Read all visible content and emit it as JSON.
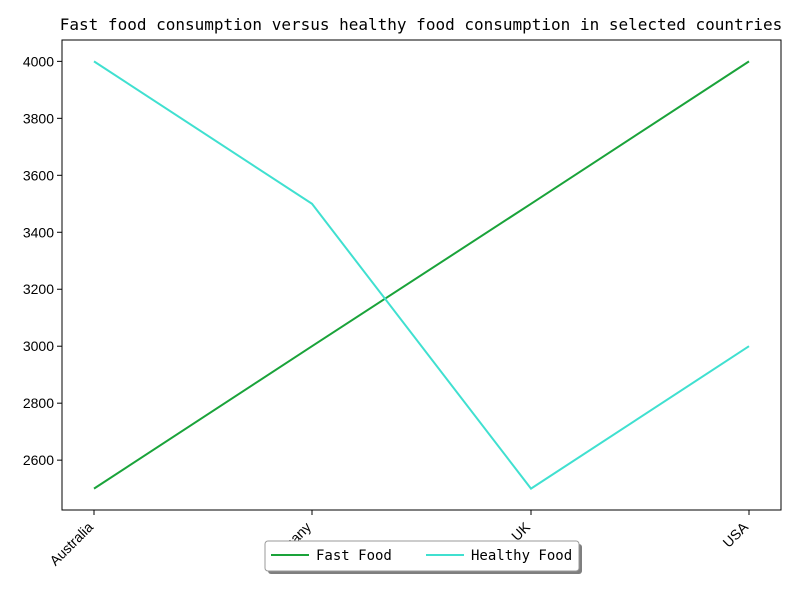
{
  "chart_data": {
    "type": "line",
    "title": "Fast food consumption versus healthy food consumption in selected countries",
    "xlabel": "",
    "ylabel": "",
    "categories": [
      "Australia",
      "Germany",
      "UK",
      "USA"
    ],
    "series": [
      {
        "name": "Fast Food",
        "values": [
          2500,
          3000,
          3500,
          4000
        ],
        "color": "#1aa33a"
      },
      {
        "name": "Healthy Food",
        "values": [
          4000,
          3500,
          2500,
          3000
        ],
        "color": "#40e0d0"
      }
    ],
    "ylim": [
      2425,
      4075
    ],
    "yticks": [
      2600,
      2800,
      3000,
      3200,
      3400,
      3600,
      3800,
      4000
    ],
    "grid": false,
    "legend_position": "bottom-center"
  }
}
